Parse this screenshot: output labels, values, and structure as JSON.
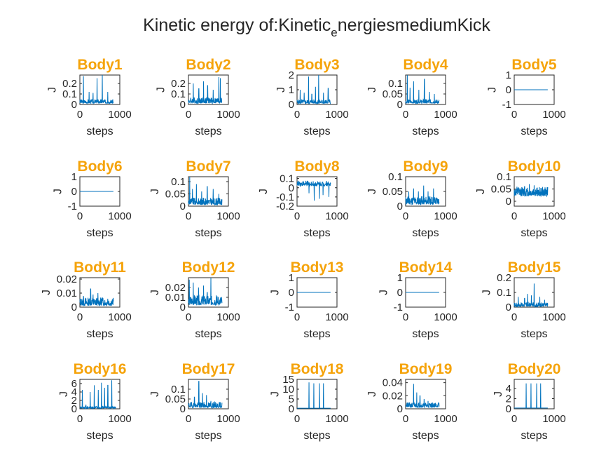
{
  "figure": {
    "title_main": "Kinetic energy of:Kinetic",
    "title_sub": "e",
    "title_rest": "nergiesmediumKick"
  },
  "colors": {
    "line": "#0072bd",
    "title": "#f5a30a",
    "text": "#262626"
  },
  "chart_data": [
    {
      "type": "line",
      "title": "Body1",
      "xlabel": "steps",
      "ylabel": "J",
      "xlim": [
        0,
        1000
      ],
      "x_ticks": [
        "0",
        "1000"
      ],
      "ylim": [
        0,
        0.28
      ],
      "y_ticks": [
        {
          "v": 0,
          "t": "0"
        },
        {
          "v": 0.1,
          "t": "0.1"
        },
        {
          "v": 0.2,
          "t": "0.2"
        }
      ],
      "x_extent": 840,
      "baseline": 0.01,
      "noise": 0.04,
      "spikes": [
        [
          90,
          0.27
        ],
        [
          230,
          0.12
        ],
        [
          330,
          0.11
        ],
        [
          430,
          0.25
        ],
        [
          560,
          0.28
        ],
        [
          700,
          0.12
        ]
      ]
    },
    {
      "type": "line",
      "title": "Body2",
      "xlabel": "steps",
      "ylabel": "J",
      "xlim": [
        0,
        1000
      ],
      "x_ticks": [
        "0",
        "1000"
      ],
      "ylim": [
        0,
        0.28
      ],
      "y_ticks": [
        {
          "v": 0,
          "t": "0"
        },
        {
          "v": 0.1,
          "t": "0.1"
        },
        {
          "v": 0.2,
          "t": "0.2"
        }
      ],
      "x_extent": 840,
      "baseline": 0.01,
      "noise": 0.06,
      "spikes": [
        [
          120,
          0.2
        ],
        [
          260,
          0.15
        ],
        [
          380,
          0.22
        ],
        [
          480,
          0.18
        ],
        [
          620,
          0.14
        ],
        [
          760,
          0.26
        ],
        [
          800,
          0.25
        ]
      ]
    },
    {
      "type": "line",
      "title": "Body3",
      "xlabel": "steps",
      "ylabel": "J",
      "xlim": [
        0,
        1000
      ],
      "x_ticks": [
        "0",
        "1000"
      ],
      "ylim": [
        0,
        2
      ],
      "y_ticks": [
        {
          "v": 0,
          "t": "0"
        },
        {
          "v": 1,
          "t": "1"
        },
        {
          "v": 2,
          "t": "2"
        }
      ],
      "x_extent": 840,
      "baseline": 0.05,
      "noise": 0.3,
      "spikes": [
        [
          80,
          1.0
        ],
        [
          180,
          0.8
        ],
        [
          290,
          1.9
        ],
        [
          370,
          0.7
        ],
        [
          460,
          1.2
        ],
        [
          540,
          2.0
        ],
        [
          660,
          0.8
        ],
        [
          780,
          1.1
        ]
      ]
    },
    {
      "type": "line",
      "title": "Body4",
      "xlabel": "steps",
      "ylabel": "J",
      "xlim": [
        0,
        1000
      ],
      "x_ticks": [
        "0",
        "1000"
      ],
      "ylim": [
        0,
        0.14
      ],
      "y_ticks": [
        {
          "v": 0,
          "t": "0"
        },
        {
          "v": 0.05,
          "t": "0.05"
        },
        {
          "v": 0.1,
          "t": "0.1"
        }
      ],
      "x_extent": 840,
      "baseline": 0.005,
      "noise": 0.02,
      "spikes": [
        [
          40,
          0.14
        ],
        [
          110,
          0.08
        ],
        [
          200,
          0.11
        ],
        [
          330,
          0.07
        ],
        [
          470,
          0.12
        ],
        [
          600,
          0.06
        ],
        [
          720,
          0.05
        ]
      ]
    },
    {
      "type": "line",
      "title": "Body5",
      "xlabel": "steps",
      "ylabel": "J",
      "xlim": [
        0,
        1000
      ],
      "x_ticks": [
        "0",
        "1000"
      ],
      "ylim": [
        -1,
        1
      ],
      "y_ticks": [
        {
          "v": -1,
          "t": "-1"
        },
        {
          "v": 0,
          "t": "0"
        },
        {
          "v": 1,
          "t": "1"
        }
      ],
      "x_extent": 840,
      "baseline": 0,
      "noise": 0,
      "spikes": []
    },
    {
      "type": "line",
      "title": "Body6",
      "xlabel": "steps",
      "ylabel": "J",
      "xlim": [
        0,
        1000
      ],
      "x_ticks": [
        "0",
        "1000"
      ],
      "ylim": [
        -1,
        1
      ],
      "y_ticks": [
        {
          "v": -1,
          "t": "-1"
        },
        {
          "v": 0,
          "t": "0"
        },
        {
          "v": 1,
          "t": "1"
        }
      ],
      "x_extent": 840,
      "baseline": 0,
      "noise": 0,
      "spikes": []
    },
    {
      "type": "line",
      "title": "Body7",
      "xlabel": "steps",
      "ylabel": "J",
      "xlim": [
        0,
        1000
      ],
      "x_ticks": [
        "0",
        "1000"
      ],
      "ylim": [
        0,
        0.12
      ],
      "y_ticks": [
        {
          "v": 0,
          "t": "0"
        },
        {
          "v": 0.05,
          "t": "0.05"
        },
        {
          "v": 0.1,
          "t": "0.1"
        }
      ],
      "x_extent": 840,
      "baseline": 0.005,
      "noise": 0.03,
      "spikes": [
        [
          30,
          0.12
        ],
        [
          100,
          0.07
        ],
        [
          200,
          0.09
        ],
        [
          330,
          0.06
        ],
        [
          470,
          0.08
        ],
        [
          620,
          0.07
        ],
        [
          760,
          0.05
        ]
      ]
    },
    {
      "type": "line",
      "title": "Body8",
      "xlabel": "steps",
      "ylabel": "J",
      "xlim": [
        0,
        1000
      ],
      "x_ticks": [
        "0",
        "1000"
      ],
      "ylim": [
        -0.2,
        0.12
      ],
      "y_ticks": [
        {
          "v": -0.2,
          "t": "-0.2"
        },
        {
          "v": -0.1,
          "t": "-0.1"
        },
        {
          "v": 0,
          "t": "0"
        },
        {
          "v": 0.1,
          "t": "0.1"
        }
      ],
      "x_extent": 840,
      "baseline": 0.02,
      "noise": 0.05,
      "spikes": [
        [
          60,
          0.06
        ],
        [
          300,
          -0.06
        ],
        [
          430,
          -0.14
        ],
        [
          560,
          -0.12
        ],
        [
          650,
          -0.08
        ],
        [
          760,
          0.05
        ],
        [
          800,
          -0.1
        ]
      ]
    },
    {
      "type": "line",
      "title": "Body9",
      "xlabel": "steps",
      "ylabel": "J",
      "xlim": [
        0,
        1000
      ],
      "x_ticks": [
        "0",
        "1000"
      ],
      "ylim": [
        0,
        0.1
      ],
      "y_ticks": [
        {
          "v": 0,
          "t": "0"
        },
        {
          "v": 0.05,
          "t": "0.05"
        },
        {
          "v": 0.1,
          "t": "0.1"
        }
      ],
      "x_extent": 840,
      "baseline": 0.005,
      "noise": 0.03,
      "spikes": [
        [
          80,
          0.05
        ],
        [
          200,
          0.06
        ],
        [
          320,
          0.05
        ],
        [
          450,
          0.07
        ],
        [
          560,
          0.05
        ],
        [
          700,
          0.06
        ]
      ]
    },
    {
      "type": "line",
      "title": "Body10",
      "xlabel": "steps",
      "ylabel": "J",
      "xlim": [
        0,
        1000
      ],
      "x_ticks": [
        "0",
        "1000"
      ],
      "ylim": [
        -0.02,
        0.1
      ],
      "y_ticks": [
        {
          "v": 0,
          "t": "0"
        },
        {
          "v": 0.05,
          "t": "0.05"
        },
        {
          "v": 0.1,
          "t": "0.1"
        }
      ],
      "x_extent": 840,
      "baseline": 0.02,
      "noise": 0.035,
      "spikes": [
        [
          100,
          0.05
        ],
        [
          260,
          0.06
        ],
        [
          380,
          0.07
        ],
        [
          500,
          0.065
        ],
        [
          620,
          0.04
        ],
        [
          720,
          0.03
        ]
      ]
    },
    {
      "type": "line",
      "title": "Body11",
      "xlabel": "steps",
      "ylabel": "J",
      "xlim": [
        0,
        1000
      ],
      "x_ticks": [
        "0",
        "1000"
      ],
      "ylim": [
        0,
        0.021
      ],
      "y_ticks": [
        {
          "v": 0,
          "t": "0"
        },
        {
          "v": 0.01,
          "t": "0.01"
        },
        {
          "v": 0.02,
          "t": "0.02"
        }
      ],
      "x_extent": 840,
      "baseline": 0.001,
      "noise": 0.006,
      "spikes": [
        [
          90,
          0.008
        ],
        [
          270,
          0.013
        ],
        [
          330,
          0.009
        ],
        [
          450,
          0.01
        ],
        [
          560,
          0.007
        ],
        [
          700,
          0.006
        ]
      ]
    },
    {
      "type": "line",
      "title": "Body12",
      "xlabel": "steps",
      "ylabel": "J",
      "xlim": [
        0,
        1000
      ],
      "x_ticks": [
        "0",
        "1000"
      ],
      "ylim": [
        0,
        0.03
      ],
      "y_ticks": [
        {
          "v": 0,
          "t": "0"
        },
        {
          "v": 0.01,
          "t": "0.01"
        },
        {
          "v": 0.02,
          "t": "0.02"
        }
      ],
      "x_extent": 840,
      "baseline": 0.002,
      "noise": 0.01,
      "spikes": [
        [
          20,
          0.028
        ],
        [
          120,
          0.025
        ],
        [
          250,
          0.02
        ],
        [
          380,
          0.022
        ],
        [
          470,
          0.015
        ],
        [
          560,
          0.03
        ],
        [
          700,
          0.012
        ]
      ]
    },
    {
      "type": "line",
      "title": "Body13",
      "xlabel": "steps",
      "ylabel": "J",
      "xlim": [
        0,
        1000
      ],
      "x_ticks": [
        "0",
        "1000"
      ],
      "ylim": [
        -1,
        1
      ],
      "y_ticks": [
        {
          "v": -1,
          "t": "-1"
        },
        {
          "v": 0,
          "t": "0"
        },
        {
          "v": 1,
          "t": "1"
        }
      ],
      "x_extent": 840,
      "baseline": 0,
      "noise": 0,
      "spikes": []
    },
    {
      "type": "line",
      "title": "Body14",
      "xlabel": "steps",
      "ylabel": "J",
      "xlim": [
        0,
        1000
      ],
      "x_ticks": [
        "0",
        "1000"
      ],
      "ylim": [
        -1,
        1
      ],
      "y_ticks": [
        {
          "v": -1,
          "t": "-1"
        },
        {
          "v": 0,
          "t": "0"
        },
        {
          "v": 1,
          "t": "1"
        }
      ],
      "x_extent": 840,
      "baseline": 0,
      "noise": 0,
      "spikes": []
    },
    {
      "type": "line",
      "title": "Body15",
      "xlabel": "steps",
      "ylabel": "J",
      "xlim": [
        0,
        1000
      ],
      "x_ticks": [
        "0",
        "1000"
      ],
      "ylim": [
        0,
        0.2
      ],
      "y_ticks": [
        {
          "v": 0,
          "t": "0"
        },
        {
          "v": 0.1,
          "t": "0.1"
        },
        {
          "v": 0.2,
          "t": "0.2"
        }
      ],
      "x_extent": 840,
      "baseline": 0.003,
      "noise": 0.03,
      "spikes": [
        [
          100,
          0.07
        ],
        [
          260,
          0.06
        ],
        [
          330,
          0.09
        ],
        [
          430,
          0.08
        ],
        [
          500,
          0.16
        ],
        [
          640,
          0.07
        ],
        [
          760,
          0.05
        ]
      ]
    },
    {
      "type": "line",
      "title": "Body16",
      "xlabel": "steps",
      "ylabel": "J",
      "xlim": [
        0,
        1000
      ],
      "x_ticks": [
        "0",
        "1000"
      ],
      "ylim": [
        0,
        7
      ],
      "y_ticks": [
        {
          "v": 0,
          "t": "0"
        },
        {
          "v": 2,
          "t": "2"
        },
        {
          "v": 4,
          "t": "4"
        },
        {
          "v": 6,
          "t": "6"
        }
      ],
      "x_extent": 900,
      "baseline": 0.1,
      "noise": 0.5,
      "spikes": [
        [
          60,
          4.5
        ],
        [
          150,
          1.0
        ],
        [
          260,
          4.0
        ],
        [
          360,
          5.6
        ],
        [
          460,
          4.5
        ],
        [
          540,
          6.2
        ],
        [
          620,
          5.0
        ],
        [
          700,
          5.6
        ],
        [
          800,
          6.8
        ]
      ]
    },
    {
      "type": "line",
      "title": "Body17",
      "xlabel": "steps",
      "ylabel": "J",
      "xlim": [
        0,
        1000
      ],
      "x_ticks": [
        "0",
        "1000"
      ],
      "ylim": [
        0,
        0.15
      ],
      "y_ticks": [
        {
          "v": 0,
          "t": "0"
        },
        {
          "v": 0.05,
          "t": "0.05"
        },
        {
          "v": 0.1,
          "t": "0.1"
        }
      ],
      "x_extent": 840,
      "baseline": 0.005,
      "noise": 0.03,
      "spikes": [
        [
          150,
          0.06
        ],
        [
          260,
          0.14
        ],
        [
          350,
          0.08
        ],
        [
          450,
          0.07
        ],
        [
          560,
          0.04
        ],
        [
          700,
          0.03
        ]
      ]
    },
    {
      "type": "line",
      "title": "Body18",
      "xlabel": "steps",
      "ylabel": "J",
      "xlim": [
        0,
        1000
      ],
      "x_ticks": [
        "0",
        "1000"
      ],
      "ylim": [
        0,
        15
      ],
      "y_ticks": [
        {
          "v": 0,
          "t": "0"
        },
        {
          "v": 5,
          "t": "5"
        },
        {
          "v": 10,
          "t": "10"
        },
        {
          "v": 15,
          "t": "15"
        }
      ],
      "x_extent": 840,
      "baseline": 0.3,
      "noise": 0,
      "spikes": [
        [
          300,
          13.5
        ],
        [
          420,
          13.0
        ],
        [
          560,
          13.0
        ],
        [
          660,
          13.0
        ]
      ]
    },
    {
      "type": "line",
      "title": "Body19",
      "xlabel": "steps",
      "ylabel": "J",
      "xlim": [
        0,
        1000
      ],
      "x_ticks": [
        "0",
        "1000"
      ],
      "ylim": [
        0,
        0.045
      ],
      "y_ticks": [
        {
          "v": 0,
          "t": "0"
        },
        {
          "v": 0.02,
          "t": "0.02"
        },
        {
          "v": 0.04,
          "t": "0.04"
        }
      ],
      "x_extent": 840,
      "baseline": 0.002,
      "noise": 0.008,
      "spikes": [
        [
          200,
          0.038
        ],
        [
          280,
          0.025
        ],
        [
          360,
          0.02
        ],
        [
          460,
          0.015
        ],
        [
          560,
          0.012
        ],
        [
          700,
          0.008
        ]
      ]
    },
    {
      "type": "line",
      "title": "Body20",
      "xlabel": "steps",
      "ylabel": "J",
      "xlim": [
        0,
        1000
      ],
      "x_ticks": [
        "0",
        "1000"
      ],
      "ylim": [
        0,
        5.8
      ],
      "y_ticks": [
        {
          "v": 0,
          "t": "0"
        },
        {
          "v": 2,
          "t": "2"
        },
        {
          "v": 4,
          "t": "4"
        }
      ],
      "x_extent": 840,
      "baseline": 0.15,
      "noise": 0,
      "spikes": [
        [
          300,
          5.0
        ],
        [
          420,
          5.0
        ],
        [
          560,
          5.0
        ],
        [
          660,
          5.0
        ]
      ]
    }
  ]
}
